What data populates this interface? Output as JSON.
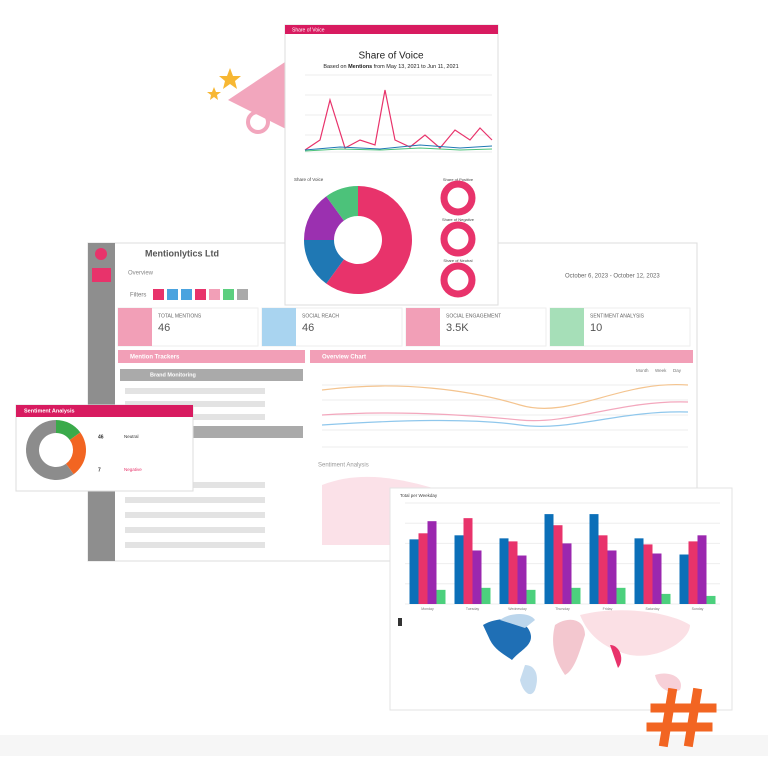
{
  "sov_window": {
    "window_title": "Share of Voice",
    "title": "Share of Voice",
    "subtitle_prefix": "Based on",
    "subtitle_bold": "Mentions",
    "subtitle_suffix": "from May 13, 2021 to Jun 11, 2021",
    "donut_label": "Share of Voice",
    "donut": {
      "type": "pie",
      "values": [
        60,
        15,
        15,
        10
      ],
      "colors": [
        "#e8336b",
        "#1f78b4",
        "#9b30b0",
        "#4cc27a"
      ]
    },
    "small_labels": [
      "Share of Positive",
      "Share of Negative",
      "Share of Neutral"
    ]
  },
  "dashboard": {
    "brand": "Mentionlytics Ltd",
    "breadcrumb": "Overview",
    "filters": "Filters",
    "date_range": "October 6, 2023 - October 12, 2023",
    "cards": [
      {
        "label": "TOTAL MENTIONS",
        "value": "46"
      },
      {
        "label": "SOCIAL REACH",
        "value": "46"
      },
      {
        "label": "SOCIAL ENGAGEMENT",
        "value": "3.5K"
      },
      {
        "label": "SENTIMENT ANALYSIS",
        "value": "10"
      }
    ],
    "trackers_title": "Mention Trackers",
    "trackers": [
      "Brand Monitoring"
    ],
    "overview_title": "Overview Chart",
    "overview_buttons": [
      "Month",
      "Week",
      "Day"
    ],
    "sentiment_title": "Sentiment Analysis"
  },
  "sentiment_popup": {
    "title": "Sentiment Analysis",
    "donut": {
      "type": "pie",
      "values": [
        15,
        25,
        60
      ],
      "colors": [
        "#3aaa4a",
        "#f26522",
        "#8c8c8c"
      ]
    },
    "rows": [
      {
        "count": "46",
        "label": "Neutral"
      },
      {
        "count": "7",
        "label": "Negative"
      }
    ]
  },
  "weekday_chart": {
    "type": "bar",
    "title": "Total per Weekday",
    "categories": [
      "Monday",
      "Tuesday",
      "Wednesday",
      "Thursday",
      "Friday",
      "Saturday",
      "Sunday"
    ],
    "series": [
      {
        "color": "#0b6fb8",
        "values": [
          64,
          68,
          65,
          89,
          89,
          65,
          49
        ]
      },
      {
        "color": "#e8336b",
        "values": [
          70,
          85,
          62,
          78,
          68,
          59,
          62
        ]
      },
      {
        "color": "#9b27af",
        "values": [
          82,
          53,
          48,
          60,
          53,
          50,
          68
        ]
      },
      {
        "color": "#4cd07d",
        "values": [
          14,
          16,
          14,
          16,
          16,
          10,
          8
        ]
      }
    ],
    "ylim": [
      0,
      100
    ]
  }
}
